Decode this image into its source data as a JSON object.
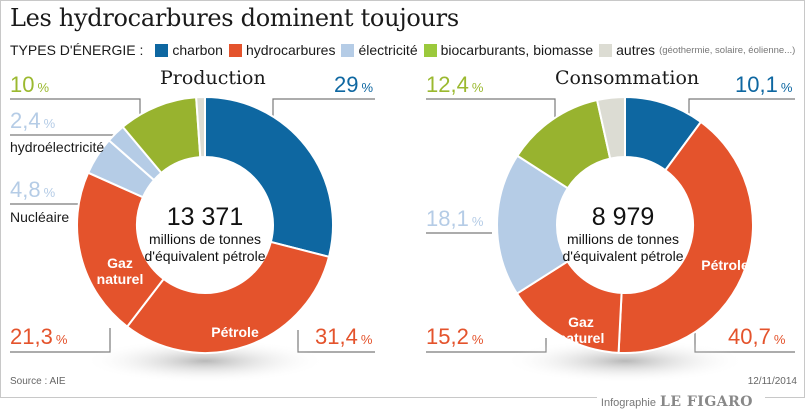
{
  "header": {
    "title": "Les hydrocarbures dominent toujours",
    "legend_label": "TYPES D'ÉNERGIE :",
    "legend": [
      {
        "key": "charbon",
        "label": "charbon",
        "color": "#0e67a1"
      },
      {
        "key": "hydrocarbures",
        "label": "hydrocarbures",
        "color": "#e4532c"
      },
      {
        "key": "electricite",
        "label": "électricité",
        "color": "#b5cce6"
      },
      {
        "key": "bio",
        "label": "biocarburants, biomasse",
        "color": "#9bb92f"
      },
      {
        "key": "autres",
        "label": "autres",
        "color": "#dcdcd3"
      }
    ],
    "legend_note": "(géothermie, solaire, éolienne...)"
  },
  "chart_data": [
    {
      "type": "pie",
      "title": "Production",
      "total_value": "13 371",
      "total_unit_line1": "millions de tonnes",
      "total_unit_line2": "d'équivalent pétrole",
      "slices": [
        {
          "name": "charbon",
          "value": 29,
          "label": "29",
          "category": "charbon"
        },
        {
          "name": "Pétrole",
          "value": 31.4,
          "label": "31,4",
          "category": "hydrocarbures"
        },
        {
          "name": "Gaz naturel",
          "value": 21.3,
          "label": "21,3",
          "category": "hydrocarbures"
        },
        {
          "name": "Nucléaire",
          "value": 4.8,
          "label": "4,8",
          "category": "electricite"
        },
        {
          "name": "hydroélectricité",
          "value": 2.4,
          "label": "2,4",
          "category": "electricite"
        },
        {
          "name": "biocarburants, biomasse",
          "value": 10,
          "label": "10",
          "category": "bio"
        },
        {
          "name": "autres",
          "value": 1.1,
          "label": "",
          "category": "autres"
        }
      ]
    },
    {
      "type": "pie",
      "title": "Consommation",
      "total_value": "8 979",
      "total_unit_line1": "millions de tonnes",
      "total_unit_line2": "d'équivalent pétrole",
      "slices": [
        {
          "name": "charbon",
          "value": 10.1,
          "label": "10,1",
          "category": "charbon"
        },
        {
          "name": "Pétrole",
          "value": 40.7,
          "label": "40,7",
          "category": "hydrocarbures"
        },
        {
          "name": "Gaz naturel",
          "value": 15.2,
          "label": "15,2",
          "category": "hydrocarbures"
        },
        {
          "name": "électricité",
          "value": 18.1,
          "label": "18,1",
          "category": "electricite"
        },
        {
          "name": "biocarburants, biomasse",
          "value": 12.4,
          "label": "12,4",
          "category": "bio"
        },
        {
          "name": "autres",
          "value": 3.5,
          "label": "",
          "category": "autres"
        }
      ]
    }
  ],
  "labels": {
    "percent_sign": "%",
    "petrole": "Pétrole",
    "gaz_line1": "Gaz",
    "gaz_line2": "naturel",
    "hydro": "hydroélectricité",
    "nucleaire": "Nucléaire"
  },
  "footer": {
    "source": "Source : AIE",
    "date": "12/11/2014",
    "credit_prefix": "Infographie",
    "credit_brand": "LE FIGARO"
  }
}
